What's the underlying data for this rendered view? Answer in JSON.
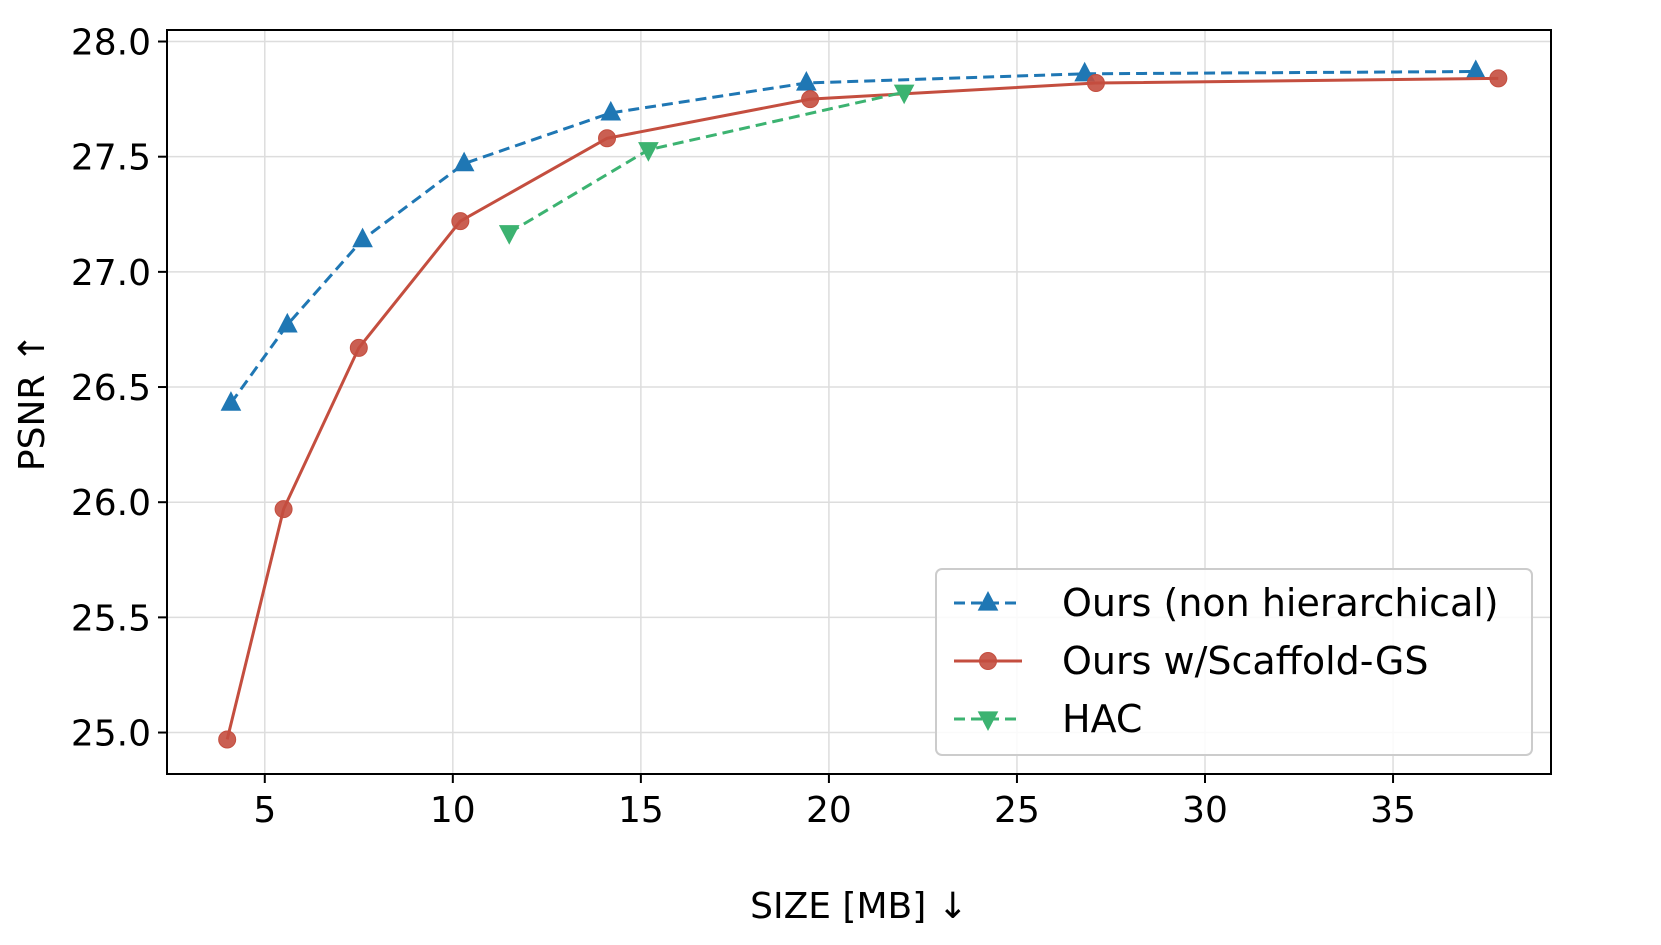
{
  "chart_data": {
    "type": "line",
    "title": "",
    "xlabel": "SIZE [MB]  ↓",
    "ylabel": "PSNR  ↑",
    "xlim": [
      2.4,
      39.2
    ],
    "ylim": [
      24.82,
      28.05
    ],
    "xticks": [
      5,
      10,
      15,
      20,
      25,
      30,
      35
    ],
    "xtick_labels": [
      "5",
      "10",
      "15",
      "20",
      "25",
      "30",
      "35"
    ],
    "yticks": [
      25.0,
      25.5,
      26.0,
      26.5,
      27.0,
      27.5,
      28.0
    ],
    "ytick_labels": [
      "25.0",
      "25.5",
      "26.0",
      "26.5",
      "27.0",
      "27.5",
      "28.0"
    ],
    "grid": true,
    "legend_position": "lower-right",
    "series": [
      {
        "name": "Ours (non hierarchical)",
        "color": "#1f77b4",
        "line_style": "dashed",
        "marker": "triangle-up",
        "x": [
          4.1,
          5.6,
          7.6,
          10.3,
          14.2,
          19.4,
          26.8,
          37.2
        ],
        "y": [
          26.43,
          26.77,
          27.14,
          27.47,
          27.69,
          27.82,
          27.86,
          27.87
        ]
      },
      {
        "name": "Ours w/Scaffold-GS",
        "color": "#c44e3f",
        "line_style": "solid",
        "marker": "circle",
        "x": [
          4.0,
          5.5,
          7.5,
          10.2,
          14.1,
          19.5,
          27.1,
          37.8
        ],
        "y": [
          24.97,
          25.97,
          26.67,
          27.22,
          27.58,
          27.75,
          27.82,
          27.84
        ]
      },
      {
        "name": "HAC",
        "color": "#3cb371",
        "line_style": "dashed",
        "marker": "triangle-down",
        "x": [
          11.5,
          15.2,
          22.0
        ],
        "y": [
          27.17,
          27.53,
          27.78
        ]
      }
    ]
  }
}
